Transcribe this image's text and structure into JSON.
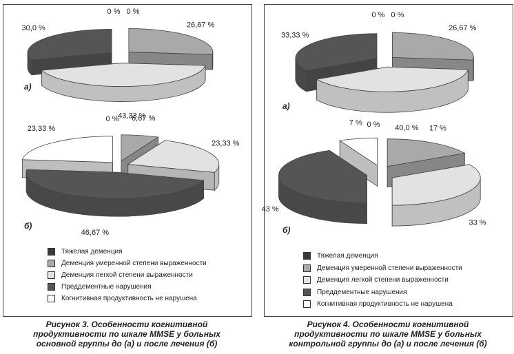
{
  "colors": {
    "severe": "#3a3a3a",
    "moderate": "#a9a9a9",
    "mild": "#e2e2e2",
    "predementia": "#555555",
    "normal": "#ffffff"
  },
  "legend": [
    {
      "key": "severe",
      "label": "Тяжелая деменция"
    },
    {
      "key": "moderate",
      "label": "Деменция умеренной степени выраженности"
    },
    {
      "key": "mild",
      "label": "Деменция легкой степени выраженности"
    },
    {
      "key": "predementia",
      "label": "Преддементные нарушения"
    },
    {
      "key": "normal",
      "label": "Когнитивная продуктивность не нарушена"
    }
  ],
  "figures": [
    {
      "caption_lines": [
        "Рисунок 3. Особенности когнитивной",
        "продуктивности по шкале MMSE у больных",
        "основной группы до (а) и после лечения (б)"
      ],
      "sublabels": [
        "а)",
        "б)"
      ]
    },
    {
      "caption_lines": [
        "Рисунок 4. Особенности когнитивной",
        "продуктивности по шкале MMSE у больных",
        "контрольной группы до (а) и после лечения (б)"
      ],
      "sublabels": [
        "а)",
        "б)"
      ]
    }
  ],
  "chart_data": [
    {
      "type": "pie",
      "title": "Рисунок 3 (а)",
      "categories": [
        "Тяжелая деменция",
        "Деменция умеренной степени выраженности",
        "Деменция легкой степени выраженности",
        "Преддементные нарушения",
        "Когнитивная продуктивность не нарушена"
      ],
      "values": [
        0,
        26.67,
        43.33,
        30.0,
        0
      ],
      "labels": [
        "0 %",
        "26,67 %",
        "43,33 %",
        "30,0 %",
        "0 %"
      ]
    },
    {
      "type": "pie",
      "title": "Рисунок 3 (б)",
      "categories": [
        "Тяжелая деменция",
        "Деменция умеренной степени выраженности",
        "Деменция легкой степени выраженности",
        "Преддементные нарушения",
        "Когнитивная продуктивность не нарушена"
      ],
      "values": [
        0,
        6.67,
        23.33,
        46.67,
        23.33
      ],
      "labels": [
        "0 %",
        "6,67 %",
        "23,33 %",
        "46,67 %",
        "23,33 %"
      ]
    },
    {
      "type": "pie",
      "title": "Рисунок 4 (а)",
      "categories": [
        "Тяжелая деменция",
        "Деменция умеренной степени выраженности",
        "Деменция легкой степени выраженности",
        "Преддементные нарушения",
        "Когнитивная продуктивность не нарушена"
      ],
      "values": [
        0,
        26.67,
        40.0,
        33.33,
        0
      ],
      "labels": [
        "0 %",
        "26,67 %",
        "40,0 %",
        "33,33 %",
        "0 %"
      ]
    },
    {
      "type": "pie",
      "title": "Рисунок 4 (б)",
      "categories": [
        "Тяжелая деменция",
        "Деменция умеренной степени выраженности",
        "Деменция легкой степени выраженности",
        "Преддементные нарушения",
        "Когнитивная продуктивность не нарушена"
      ],
      "values": [
        0,
        17,
        33,
        43,
        7
      ],
      "labels": [
        "0 %",
        "17 %",
        "33 %",
        "43 %",
        "7 %"
      ]
    }
  ]
}
